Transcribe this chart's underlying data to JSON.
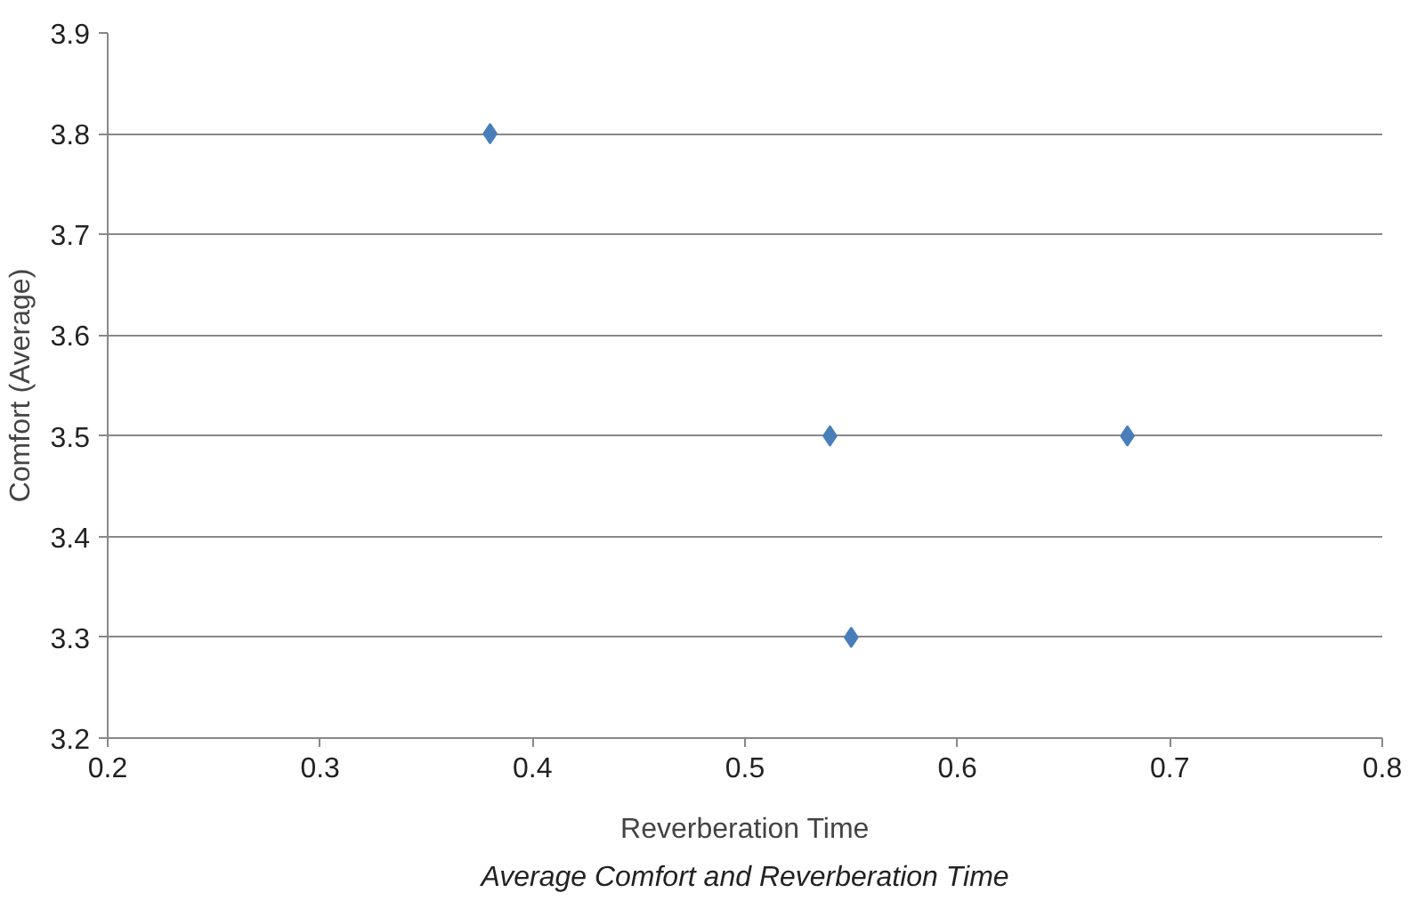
{
  "chart_data": {
    "type": "scatter",
    "xlabel": "Reverberation Time",
    "ylabel": "Comfort (Average)",
    "annotations": [
      "Average Comfort and Reverberation Time"
    ],
    "x": [
      0.38,
      0.54,
      0.68,
      0.55
    ],
    "series": [
      {
        "color": "#4a7ebb",
        "values": [
          3.8,
          3.5,
          3.5,
          3.3
        ]
      }
    ],
    "xlim": [
      0.2,
      0.8
    ],
    "xticks": [
      0.2,
      0.3,
      0.4,
      0.5,
      0.6,
      0.7,
      0.8
    ],
    "ylim": [
      3.2,
      3.9
    ],
    "yticks": [
      3.2,
      3.3,
      3.4,
      3.5,
      3.6,
      3.7,
      3.8,
      3.9
    ],
    "grid": "y",
    "marker": "diamond"
  }
}
